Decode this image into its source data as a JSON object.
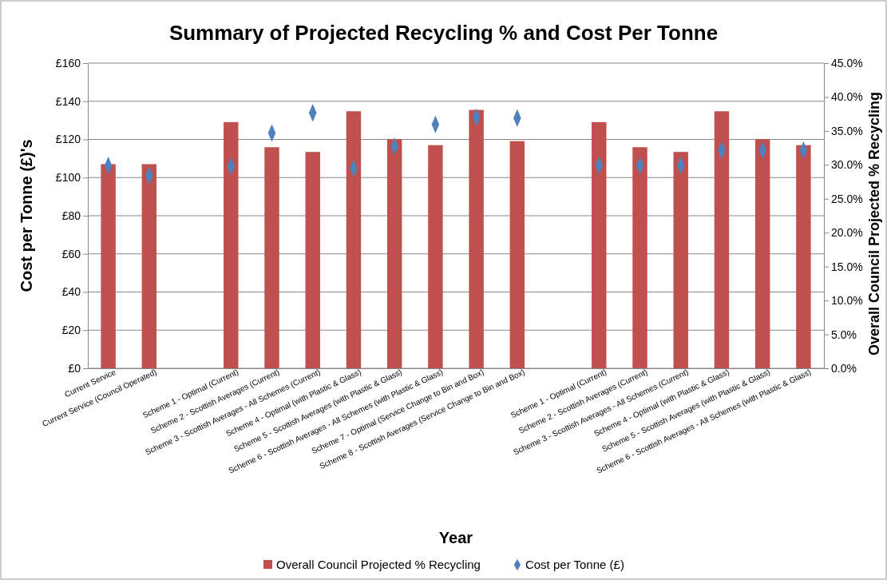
{
  "chart_data": {
    "type": "bar",
    "title": "Summary of Projected Recycling % and Cost Per Tonne",
    "xlabel": "Year",
    "ylabel": "Cost per Tonne (£)'s",
    "y2label": "Overall Council  Projected % Recycling",
    "categories": [
      "Current Service",
      "Current Service (Council Operated)",
      null,
      "Scheme 1 - Optimal (Current)",
      "Scheme 2 - Scottish Averages (Current)",
      "Scheme 3 - Scottish Averages - All Schemes (Current)",
      "Scheme 4 - Optimal (with Plastic & Glass)",
      "Scheme 5 - Scottish Averages (with Plastic & Glass)",
      "Scheme 6 - Scottish Averages - All Schemes (with Plastic & Glass)",
      "Scheme 7 - Optimal (Service Change to Bin and Box)",
      "Scheme 8 - Scottish Averages (Service Change to Bin and Box)",
      null,
      "Scheme 1 - Optimal (Current)",
      "Scheme 2 - Scottish Averages (Current)",
      "Scheme 3 - Scottish Averages - All Schemes (Current)",
      "Scheme 4 - Optimal (with Plastic & Glass)",
      "Scheme 5 - Scottish Averages (with Plastic & Glass)",
      "Scheme 6 - Scottish Averages - All Schemes (with Plastic & Glass)"
    ],
    "series": [
      {
        "name": "Overall Council Projected % Recycling",
        "axis": "y2",
        "color": "#c0504d",
        "values": [
          30.1,
          30.1,
          null,
          36.3,
          32.6,
          31.9,
          37.9,
          33.8,
          32.9,
          38.1,
          33.5,
          null,
          36.3,
          32.6,
          31.9,
          37.9,
          33.8,
          32.9
        ]
      },
      {
        "name": "Cost per Tonne (£)",
        "type": "scatter",
        "marker": "diamond",
        "color": "#4f81bd",
        "values": [
          106.3,
          101.0,
          null,
          106.0,
          123.3,
          133.9,
          104.8,
          116.3,
          127.9,
          131.5,
          131.2,
          null,
          106.4,
          106.4,
          106.4,
          114.3,
          114.3,
          114.3
        ]
      }
    ],
    "ylim": [
      0,
      160
    ],
    "yticks": [
      {
        "value": 0,
        "label": "£0"
      },
      {
        "value": 20,
        "label": "£20"
      },
      {
        "value": 40,
        "label": "£40"
      },
      {
        "value": 60,
        "label": "£60"
      },
      {
        "value": 80,
        "label": "£80"
      },
      {
        "value": 100,
        "label": "£100"
      },
      {
        "value": 120,
        "label": "£120"
      },
      {
        "value": 140,
        "label": "£140"
      },
      {
        "value": 160,
        "label": "£160"
      }
    ],
    "y2lim": [
      0,
      45
    ],
    "y2ticks": [
      {
        "value": 0,
        "label": "0.0%"
      },
      {
        "value": 5,
        "label": "5.0%"
      },
      {
        "value": 10,
        "label": "10.0%"
      },
      {
        "value": 15,
        "label": "15.0%"
      },
      {
        "value": 20,
        "label": "20.0%"
      },
      {
        "value": 25,
        "label": "25.0%"
      },
      {
        "value": 30,
        "label": "30.0%"
      },
      {
        "value": 35,
        "label": "35.0%"
      },
      {
        "value": 40,
        "label": "40.0%"
      },
      {
        "value": 45,
        "label": "45.0%"
      }
    ],
    "grid": "y",
    "legend": "bottom"
  }
}
